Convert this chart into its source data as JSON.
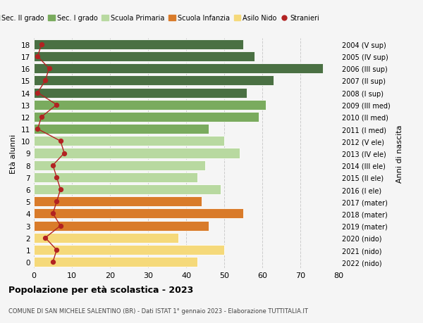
{
  "ages": [
    18,
    17,
    16,
    15,
    14,
    13,
    12,
    11,
    10,
    9,
    8,
    7,
    6,
    5,
    4,
    3,
    2,
    1,
    0
  ],
  "right_labels": [
    "2004 (V sup)",
    "2005 (IV sup)",
    "2006 (III sup)",
    "2007 (II sup)",
    "2008 (I sup)",
    "2009 (III med)",
    "2010 (II med)",
    "2011 (I med)",
    "2012 (V ele)",
    "2013 (IV ele)",
    "2014 (III ele)",
    "2015 (II ele)",
    "2016 (I ele)",
    "2017 (mater)",
    "2018 (mater)",
    "2019 (mater)",
    "2020 (nido)",
    "2021 (nido)",
    "2022 (nido)"
  ],
  "bar_values": [
    55,
    58,
    76,
    63,
    56,
    61,
    59,
    46,
    50,
    54,
    45,
    43,
    49,
    44,
    55,
    46,
    38,
    50,
    43
  ],
  "bar_colors": [
    "#4a7043",
    "#4a7043",
    "#4a7043",
    "#4a7043",
    "#4a7043",
    "#7aab5e",
    "#7aab5e",
    "#7aab5e",
    "#b8d9a0",
    "#b8d9a0",
    "#b8d9a0",
    "#b8d9a0",
    "#b8d9a0",
    "#d97b2a",
    "#d97b2a",
    "#d97b2a",
    "#f5d97a",
    "#f5d97a",
    "#f5d97a"
  ],
  "stranieri_values": [
    2,
    1,
    4,
    3,
    1,
    6,
    2,
    1,
    7,
    8,
    5,
    6,
    7,
    6,
    5,
    7,
    3,
    6,
    5
  ],
  "stranieri_color": "#b22222",
  "legend_labels": [
    "Sec. II grado",
    "Sec. I grado",
    "Scuola Primaria",
    "Scuola Infanzia",
    "Asilo Nido",
    "Stranieri"
  ],
  "legend_colors": [
    "#4a7043",
    "#7aab5e",
    "#b8d9a0",
    "#d97b2a",
    "#f5d97a",
    "#b22222"
  ],
  "ylabel_left": "Età alunni",
  "ylabel_right": "Anni di nascita",
  "title": "Popolazione per età scolastica - 2023",
  "subtitle": "COMUNE DI SAN MICHELE SALENTINO (BR) - Dati ISTAT 1° gennaio 2023 - Elaborazione TUTTITALIA.IT",
  "xlim": [
    0,
    80
  ],
  "xticks": [
    0,
    10,
    20,
    30,
    40,
    50,
    60,
    70,
    80
  ],
  "bg_color": "#f5f5f5",
  "bar_height": 0.82,
  "bar_edge_color": "#ffffff"
}
